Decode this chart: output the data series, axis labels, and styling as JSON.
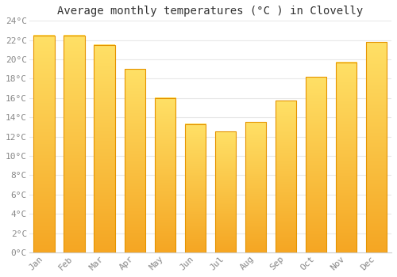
{
  "title": "Average monthly temperatures (°C ) in Clovelly",
  "months": [
    "Jan",
    "Feb",
    "Mar",
    "Apr",
    "May",
    "Jun",
    "Jul",
    "Aug",
    "Sep",
    "Oct",
    "Nov",
    "Dec"
  ],
  "values": [
    22.5,
    22.5,
    21.5,
    19.0,
    16.0,
    13.3,
    12.5,
    13.5,
    15.7,
    18.2,
    19.7,
    21.8
  ],
  "ylim": [
    0,
    24
  ],
  "yticks": [
    0,
    2,
    4,
    6,
    8,
    10,
    12,
    14,
    16,
    18,
    20,
    22,
    24
  ],
  "ytick_labels": [
    "0°C",
    "2°C",
    "4°C",
    "6°C",
    "8°C",
    "10°C",
    "12°C",
    "14°C",
    "16°C",
    "18°C",
    "20°C",
    "22°C",
    "24°C"
  ],
  "bg_color": "#ffffff",
  "grid_color": "#e8e8e8",
  "title_fontsize": 10,
  "tick_fontsize": 8,
  "bar_bottom_color": "#F5A623",
  "bar_top_color": "#FFE066",
  "bar_edge_color": "#E59400",
  "bar_width": 0.7
}
